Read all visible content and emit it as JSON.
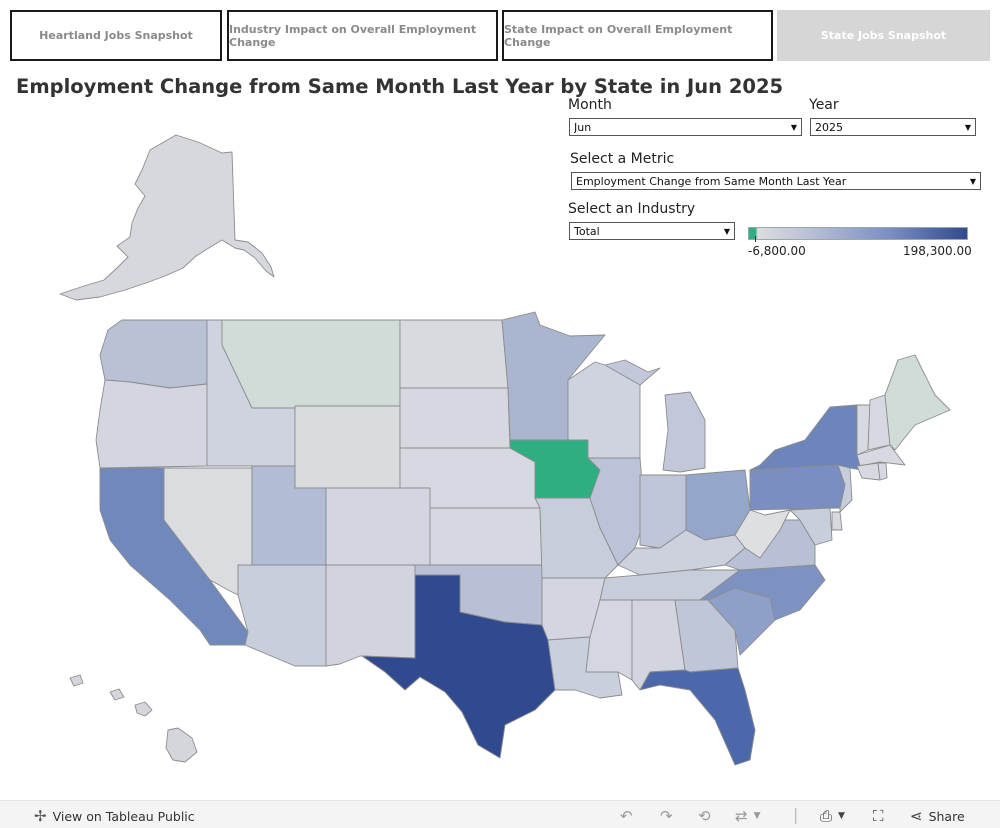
{
  "tabs": [
    {
      "label": "Heartland Jobs Snapshot"
    },
    {
      "label": "Industry Impact on Overall Employment Change"
    },
    {
      "label": "State Impact on Overall Employment Change"
    },
    {
      "label": "State Jobs Snapshot"
    }
  ],
  "title": "Employment Change from Same Month Last Year by State in Jun 2025",
  "filters": {
    "month": {
      "label": "Month",
      "value": "Jun"
    },
    "year": {
      "label": "Year",
      "value": "2025"
    },
    "metric": {
      "label": "Select a Metric",
      "value": "Employment Change from Same Month Last Year"
    },
    "industry": {
      "label": "Select an Industry",
      "value": "Total"
    }
  },
  "legend": {
    "min_label": "-6,800.00",
    "max_label": "198,300.00",
    "color_low": "#2fae82",
    "color_mid": "#dcdde1",
    "color_high": "#31498f"
  },
  "footer": {
    "view_label": "View on Tableau Public",
    "share_label": "Share"
  },
  "colors": {
    "TX": "#31498f",
    "FL": "#4c67aa",
    "CA": "#7088bc",
    "NY": "#6e85bc",
    "PA": "#7a8ec1",
    "NC": "#7e92c2",
    "OH": "#95a6cb",
    "SC": "#8e9fc8",
    "MN": "#aab5d0",
    "UT": "#b2bcd4",
    "WA": "#b9c1d5",
    "OK": "#b7c0d5",
    "GA": "#bfc6d8",
    "VA": "#b8c0d6",
    "MI": "#c2c8da",
    "IL": "#bcc3d8",
    "IN": "#c0c6d9",
    "TN": "#c8cddc",
    "AZ": "#c9cedd",
    "NJ": "#c8cddc",
    "MD": "#c9cedd",
    "OR": "#d3d6e0",
    "ID": "#cfd3df",
    "NM": "#d1d4df",
    "AL": "#d2d5e0",
    "LA": "#cacfdd",
    "KY": "#cdd1de",
    "MO": "#c8cddc",
    "WI": "#cfd3df",
    "AR": "#d3d6e0",
    "MS": "#d4d7e1",
    "KS": "#d5d8e1",
    "NE": "#d6d9e1",
    "CO": "#d3d6e0",
    "NV": "#dbdce0",
    "WY": "#dadbdf",
    "ND": "#d9dadf",
    "SD": "#d5d8e0",
    "MT": "#cfdcd8",
    "IA": "#2fae82",
    "WV": "#dedfe1",
    "ME": "#d0dcd8",
    "NE_small": "#d6d9e1",
    "AK": "#d6d8dd",
    "HI": "#d4d6dc"
  }
}
